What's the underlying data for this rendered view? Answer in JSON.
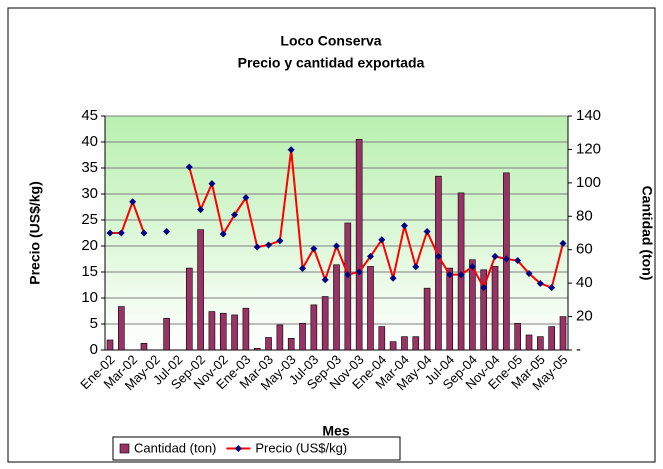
{
  "chart_data": {
    "type": "bar-line",
    "title": "Loco Conserva",
    "subtitle": "Precio y cantidad exportada",
    "x_label": "Mes",
    "y_label": "Precio (US$/kg)",
    "y2_label": "Cantidad (ton)",
    "categories": [
      "Ene-02",
      null,
      "Mar-02",
      null,
      "May-02",
      null,
      "Jul-02",
      null,
      "Sep-02",
      null,
      "Nov-02",
      null,
      "Ene-03",
      null,
      "Mar-03",
      null,
      "May-03",
      null,
      "Jul-03",
      null,
      "Sep-03",
      null,
      "Nov-03",
      null,
      "Ene-04",
      null,
      "Mar-04",
      null,
      "May-04",
      null,
      "Jul-04",
      null,
      "Sep-04",
      null,
      "Nov-04",
      null,
      "Ene-05",
      null,
      "Mar-05",
      null,
      "May-05"
    ],
    "series": [
      {
        "name": "Cantidad (ton)",
        "type": "bar",
        "axis": "y2",
        "color": "#993366",
        "values": [
          6,
          26,
          null,
          4,
          null,
          19,
          null,
          49,
          72,
          23,
          22,
          21,
          25,
          1,
          7.5,
          15,
          7,
          16,
          27,
          32,
          51,
          76,
          126,
          50,
          14,
          5,
          8,
          8,
          37,
          104,
          49,
          94,
          54,
          48,
          50,
          106,
          16,
          9,
          8,
          14,
          20
        ]
      },
      {
        "name": "Precio (US$/kg)",
        "type": "line",
        "color": "#ff0000",
        "marker_color": "#000080",
        "values": [
          22.5,
          22.5,
          28.5,
          22.5,
          null,
          22.8,
          null,
          35.2,
          27,
          32,
          22.3,
          26,
          29.3,
          19.8,
          20.2,
          21,
          38.5,
          15.7,
          19.5,
          13.5,
          20,
          14.5,
          15,
          18,
          21.2,
          13.8,
          23.9,
          16,
          22.8,
          18,
          14.5,
          14.5,
          16,
          12,
          18,
          17.5,
          17.2,
          14.7,
          12.8,
          12,
          20.5
        ]
      }
    ],
    "ylim": [
      0,
      45
    ],
    "yticks": [
      0,
      5,
      10,
      15,
      20,
      25,
      30,
      35,
      40,
      45
    ],
    "y2lim": [
      0,
      140
    ],
    "y2ticks": [
      {
        "value": 0,
        "label": "-"
      },
      20,
      40,
      60,
      80,
      100,
      120,
      140
    ],
    "grid": true,
    "legend": "bottom"
  }
}
